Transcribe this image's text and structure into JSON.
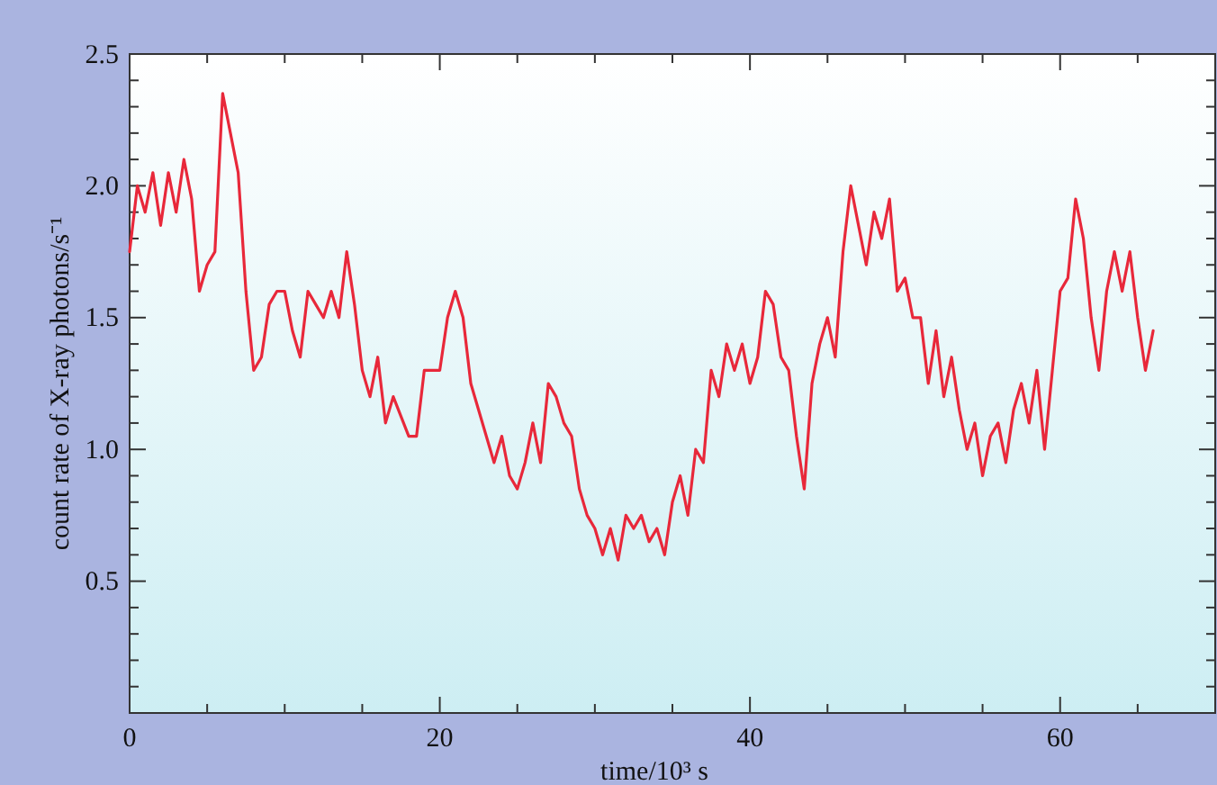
{
  "chart_data": {
    "type": "line",
    "xlabel": "time/10³ s",
    "ylabel": "count rate of X-ray photons/s⁻¹",
    "xlim": [
      0,
      70
    ],
    "ylim": [
      0,
      2.5
    ],
    "xticks": [
      0,
      {
        "value": 5,
        "label": null
      },
      {
        "value": 10,
        "label": null
      },
      {
        "value": 15,
        "label": null
      },
      20,
      {
        "value": 25,
        "label": null
      },
      {
        "value": 30,
        "label": null
      },
      {
        "value": 35,
        "label": null
      },
      40,
      {
        "value": 45,
        "label": null
      },
      {
        "value": 50,
        "label": null
      },
      {
        "value": 55,
        "label": null
      },
      60,
      {
        "value": 65,
        "label": null
      }
    ],
    "yticks": [
      {
        "value": 0.1,
        "label": null
      },
      {
        "value": 0.2,
        "label": null
      },
      {
        "value": 0.3,
        "label": null
      },
      {
        "value": 0.4,
        "label": null
      },
      0.5,
      {
        "value": 0.6,
        "label": null
      },
      {
        "value": 0.7,
        "label": null
      },
      {
        "value": 0.8,
        "label": null
      },
      {
        "value": 0.9,
        "label": null
      },
      {
        "value": 1,
        "label": "1.0"
      },
      {
        "value": 1.1,
        "label": null
      },
      {
        "value": 1.2,
        "label": null
      },
      {
        "value": 1.3,
        "label": null
      },
      {
        "value": 1.4,
        "label": null
      },
      1.5,
      {
        "value": 1.6,
        "label": null
      },
      {
        "value": 1.7,
        "label": null
      },
      {
        "value": 1.8,
        "label": null
      },
      {
        "value": 1.9,
        "label": null
      },
      {
        "value": 2,
        "label": "2.0"
      },
      {
        "value": 2.1,
        "label": null
      },
      {
        "value": 2.2,
        "label": null
      },
      {
        "value": 2.3,
        "label": null
      },
      {
        "value": 2.4,
        "label": null
      },
      2.5
    ],
    "grid": false,
    "marker": "none",
    "line_style": "solid",
    "series": [
      {
        "color": "#e8283a",
        "x": [
          0,
          0.5,
          1,
          1.5,
          2,
          2.5,
          3,
          3.5,
          4,
          4.5,
          5,
          5.5,
          6,
          6.5,
          7,
          7.5,
          8,
          8.5,
          9,
          9.5,
          10,
          10.5,
          11,
          11.5,
          12,
          12.5,
          13,
          13.5,
          14,
          14.5,
          15,
          15.5,
          16,
          16.5,
          17,
          18,
          18.5,
          19,
          20,
          20.5,
          21,
          21.5,
          22,
          22.5,
          23,
          23.5,
          24,
          24.5,
          25,
          25.5,
          26,
          26.5,
          27,
          27.5,
          28,
          28.5,
          29,
          29.5,
          30,
          30.5,
          31,
          31.5,
          32,
          32.5,
          33,
          33.5,
          34,
          34.5,
          35,
          35.5,
          36,
          36.5,
          37,
          37.5,
          38,
          38.5,
          39,
          39.5,
          40,
          40.5,
          41,
          41.5,
          42,
          42.5,
          43,
          43.5,
          44,
          44.5,
          45,
          45.5,
          46,
          46.5,
          47,
          47.5,
          48,
          48.5,
          49,
          49.5,
          50,
          50.5,
          51,
          51.5,
          52,
          52.5,
          53,
          53.5,
          54,
          54.5,
          55,
          55.5,
          56,
          56.5,
          57,
          57.5,
          58,
          58.5,
          59,
          59.5,
          60,
          60.5,
          61,
          61.5,
          62,
          62.5,
          63,
          63.5,
          64,
          64.5,
          65,
          65.5,
          66
        ],
        "values": [
          1.75,
          2.0,
          1.9,
          2.05,
          1.85,
          2.05,
          1.9,
          2.1,
          1.95,
          1.6,
          1.7,
          1.75,
          2.35,
          2.2,
          2.05,
          1.6,
          1.3,
          1.35,
          1.55,
          1.6,
          1.6,
          1.45,
          1.35,
          1.6,
          1.55,
          1.5,
          1.6,
          1.5,
          1.75,
          1.55,
          1.3,
          1.2,
          1.35,
          1.1,
          1.2,
          1.05,
          1.05,
          1.3,
          1.3,
          1.5,
          1.6,
          1.5,
          1.25,
          1.15,
          1.05,
          0.95,
          1.05,
          0.9,
          0.85,
          0.95,
          1.1,
          0.95,
          1.25,
          1.2,
          1.1,
          1.05,
          0.85,
          0.75,
          0.7,
          0.6,
          0.7,
          0.58,
          0.75,
          0.7,
          0.75,
          0.65,
          0.7,
          0.6,
          0.8,
          0.9,
          0.75,
          1.0,
          0.95,
          1.3,
          1.2,
          1.4,
          1.3,
          1.4,
          1.25,
          1.35,
          1.6,
          1.55,
          1.35,
          1.3,
          1.05,
          0.85,
          1.25,
          1.4,
          1.5,
          1.35,
          1.75,
          2.0,
          1.85,
          1.7,
          1.9,
          1.8,
          1.95,
          1.6,
          1.65,
          1.5,
          1.5,
          1.25,
          1.45,
          1.2,
          1.35,
          1.15,
          1.0,
          1.1,
          0.9,
          1.05,
          1.1,
          0.95,
          1.15,
          1.25,
          1.1,
          1.3,
          1.0,
          1.3,
          1.6,
          1.65,
          1.95,
          1.8,
          1.5,
          1.3,
          1.6,
          1.75,
          1.6,
          1.75,
          1.5,
          1.3,
          1.45
        ]
      }
    ]
  }
}
